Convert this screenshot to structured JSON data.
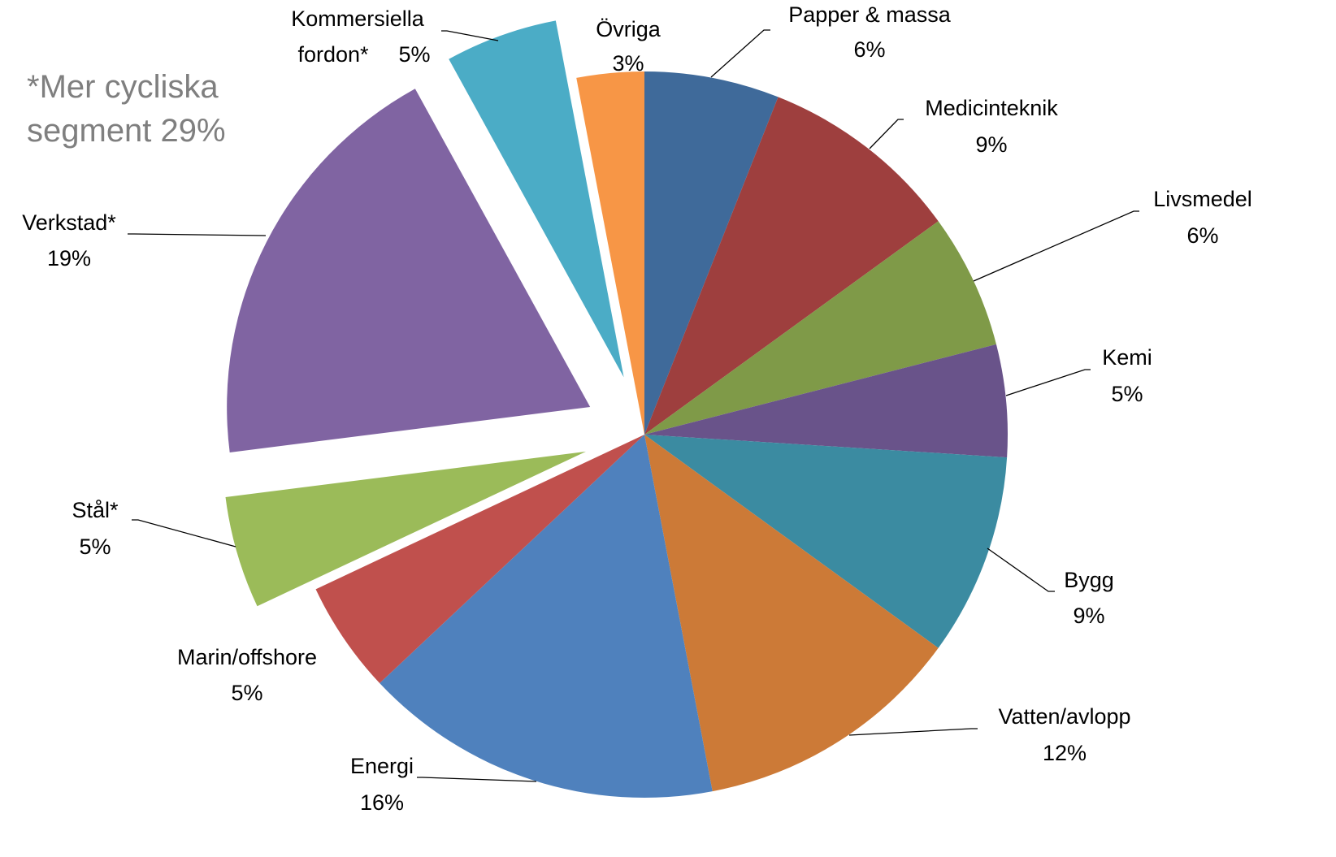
{
  "chart_data": {
    "type": "pie",
    "annotation": "*Mer cycliska segment 29%",
    "categories": [
      "Papper & massa",
      "Medicinteknik",
      "Livsmedel",
      "Kemi",
      "Bygg",
      "Vatten/avlopp",
      "Energi",
      "Marin/offshore",
      "Stål*",
      "Verkstad*",
      "Kommersiella fordon*",
      "Övriga"
    ],
    "values": [
      6,
      9,
      6,
      5,
      9,
      12,
      16,
      5,
      5,
      19,
      5,
      3
    ],
    "value_labels": [
      "6%",
      "9%",
      "6%",
      "5%",
      "9%",
      "12%",
      "16%",
      "5%",
      "5%",
      "19%",
      "5%",
      "3%"
    ],
    "colors": [
      "#3f6a9a",
      "#9e3f3e",
      "#7f9a48",
      "#69538a",
      "#3b8ba1",
      "#cc7a37",
      "#4f81bd",
      "#c0504d",
      "#9bbb59",
      "#8064a2",
      "#4bacc6",
      "#f79646"
    ],
    "exploded": [
      "Stål*",
      "Verkstad*",
      "Kommersiella fordon*"
    ]
  }
}
